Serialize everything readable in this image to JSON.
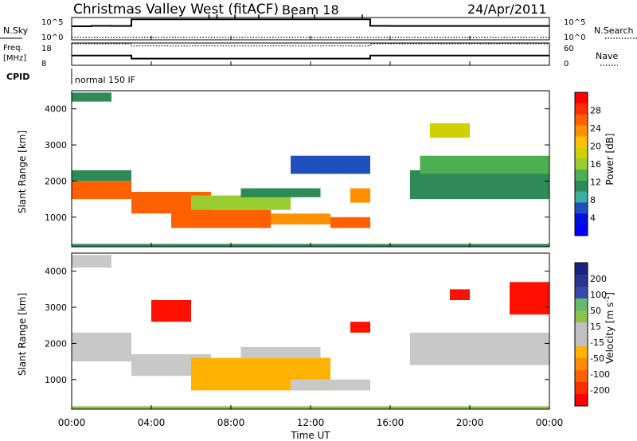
{
  "header": {
    "station": "Christmas Valley West (fitACF)",
    "beam": "Beam 18",
    "date": "24/Apr/2011",
    "param_label": "normal 150 IF"
  },
  "strip_labels": {
    "nsky": "N.Sky",
    "freq_top": "Freq.",
    "freq_unit": "[MHz]",
    "cpid": "CPID",
    "nsearch": "N.Search",
    "nave": "Nave",
    "left_ticks_1": [
      "10^5",
      "10^0"
    ],
    "left_ticks_2": [
      "18",
      "8"
    ],
    "right_ticks_1": [
      "10^5",
      "10^0"
    ],
    "right_ticks_2": [
      "60",
      "0"
    ]
  },
  "x_axis": {
    "label": "Time UT",
    "ticks": [
      "00:00",
      "04:00",
      "08:00",
      "12:00",
      "16:00",
      "20:00",
      "00:00"
    ]
  },
  "power_colorbar": {
    "label": "Power [dB]",
    "ticks": [
      "28",
      "24",
      "20",
      "16",
      "12",
      "8",
      "4"
    ],
    "colors": [
      "#ff0000",
      "#ff3000",
      "#ff6000",
      "#ff9000",
      "#ffc000",
      "#d0d000",
      "#9acd32",
      "#4caf50",
      "#2e8b57",
      "#3cb0a0",
      "#2050c0",
      "#0010e0",
      "#0000ff"
    ]
  },
  "velocity_colorbar": {
    "label": "Velocity [m s",
    "label_sup": "-1",
    "label_end": "]",
    "ticks": [
      "200",
      "100",
      "50",
      "15",
      "-15",
      "-50",
      "-100",
      "-200"
    ],
    "colors": [
      "#1a237e",
      "#283593",
      "#3949ab",
      "#66bb6a",
      "#8bc34a",
      "#c0c0c0",
      "#c0c0c0",
      "#ffb300",
      "#ff8c00",
      "#ff6000",
      "#ff3000",
      "#ff0000"
    ]
  },
  "chart_data": [
    {
      "type": "line",
      "title": "N.Sky / N.Search",
      "x": [
        0,
        1,
        2,
        3,
        4,
        5,
        6,
        7,
        8,
        9,
        10,
        11,
        12,
        13,
        14,
        15,
        16,
        17,
        18,
        19,
        20,
        21,
        22,
        23,
        24
      ],
      "series": [
        {
          "name": "N.Sky",
          "values": [
            1200,
            1500,
            1400,
            60000,
            60000,
            60000,
            60000,
            60000,
            60000,
            60000,
            60000,
            60000,
            60000,
            60000,
            60000,
            1500,
            1400,
            1400,
            1400,
            1400,
            1400,
            1400,
            1400,
            1400,
            1400
          ]
        },
        {
          "name": "N.Search",
          "values": [
            1,
            1,
            1,
            1,
            1,
            1,
            1,
            1,
            1,
            1,
            1,
            1,
            1,
            1,
            1,
            1,
            1,
            1,
            1,
            1,
            1,
            1,
            1,
            1,
            1
          ]
        }
      ],
      "ylim": [
        1,
        100000
      ],
      "xlim": [
        0,
        24
      ]
    },
    {
      "type": "line",
      "title": "Freq / Nave",
      "x": [
        0,
        3,
        3,
        15,
        15,
        24
      ],
      "series": [
        {
          "name": "Freq",
          "values": [
            12.4,
            12.4,
            11.0,
            11.0,
            12.4,
            12.4
          ]
        },
        {
          "name": "Nave",
          "values": [
            58,
            58,
            52,
            52,
            58,
            58
          ]
        }
      ],
      "ylim": [
        8,
        18
      ],
      "xlim": [
        0,
        24
      ]
    },
    {
      "type": "heatmap",
      "title": "Power",
      "xlabel": "Time UT",
      "ylabel": "Slant Range [km]",
      "xlim": [
        0,
        24
      ],
      "ylim": [
        180,
        4500
      ],
      "yticks": [
        1000,
        2000,
        3000,
        4000
      ],
      "colorbar": {
        "label": "Power [dB]",
        "range": [
          0,
          32
        ]
      },
      "regions": [
        {
          "t0": 0,
          "t1": 3,
          "r0": 1500,
          "r1": 2000,
          "value": 28
        },
        {
          "t0": 0,
          "t1": 3,
          "r0": 2000,
          "r1": 2300,
          "value": 12
        },
        {
          "t0": 0,
          "t1": 2,
          "r0": 4200,
          "r1": 4450,
          "value": 12
        },
        {
          "t0": 3,
          "t1": 7,
          "r0": 1100,
          "r1": 1700,
          "value": 27
        },
        {
          "t0": 5,
          "t1": 10,
          "r0": 700,
          "r1": 1200,
          "value": 26
        },
        {
          "t0": 6,
          "t1": 11,
          "r0": 1200,
          "r1": 1600,
          "value": 16
        },
        {
          "t0": 10,
          "t1": 13,
          "r0": 800,
          "r1": 1100,
          "value": 25
        },
        {
          "t0": 13,
          "t1": 15,
          "r0": 700,
          "r1": 1000,
          "value": 26
        },
        {
          "t0": 14,
          "t1": 15,
          "r0": 1400,
          "r1": 1800,
          "value": 24
        },
        {
          "t0": 8.5,
          "t1": 12.5,
          "r0": 1550,
          "r1": 1800,
          "value": 10
        },
        {
          "t0": 11,
          "t1": 15,
          "r0": 2200,
          "r1": 2700,
          "value": 5
        },
        {
          "t0": 17,
          "t1": 24,
          "r0": 1500,
          "r1": 2300,
          "value": 12
        },
        {
          "t0": 17.5,
          "t1": 24,
          "r0": 2200,
          "r1": 2700,
          "value": 14
        },
        {
          "t0": 18,
          "t1": 20,
          "r0": 3200,
          "r1": 3600,
          "value": 18
        },
        {
          "t0": 0,
          "t1": 24,
          "r0": 180,
          "r1": 260,
          "value": 12
        }
      ]
    },
    {
      "type": "heatmap",
      "title": "Velocity",
      "xlabel": "Time UT",
      "ylabel": "Slant Range [km]",
      "xlim": [
        0,
        24
      ],
      "ylim": [
        180,
        4500
      ],
      "yticks": [
        1000,
        2000,
        3000,
        4000
      ],
      "colorbar": {
        "label": "Velocity [m s-1]",
        "range": [
          -250,
          250
        ]
      },
      "regions": [
        {
          "t0": 0,
          "t1": 3,
          "r0": 1500,
          "r1": 2300,
          "value": 0
        },
        {
          "t0": 0,
          "t1": 2,
          "r0": 4100,
          "r1": 4450,
          "value": 0
        },
        {
          "t0": 3,
          "t1": 7,
          "r0": 1100,
          "r1": 1700,
          "value": 0
        },
        {
          "t0": 6,
          "t1": 13,
          "r0": 700,
          "r1": 1600,
          "value": -40
        },
        {
          "t0": 8.5,
          "t1": 12.5,
          "r0": 1600,
          "r1": 1900,
          "value": 0
        },
        {
          "t0": 11,
          "t1": 15,
          "r0": 700,
          "r1": 1000,
          "value": 0
        },
        {
          "t0": 17,
          "t1": 24,
          "r0": 1400,
          "r1": 2300,
          "value": 0
        },
        {
          "t0": 4,
          "t1": 6,
          "r0": 2600,
          "r1": 3200,
          "value": -200
        },
        {
          "t0": 14,
          "t1": 15,
          "r0": 2300,
          "r1": 2600,
          "value": -150
        },
        {
          "t0": 19,
          "t1": 20,
          "r0": 3200,
          "r1": 3500,
          "value": -200
        },
        {
          "t0": 22,
          "t1": 24,
          "r0": 2800,
          "r1": 3700,
          "value": -200
        },
        {
          "t0": 0,
          "t1": 24,
          "r0": 180,
          "r1": 260,
          "value": 30
        }
      ]
    }
  ]
}
